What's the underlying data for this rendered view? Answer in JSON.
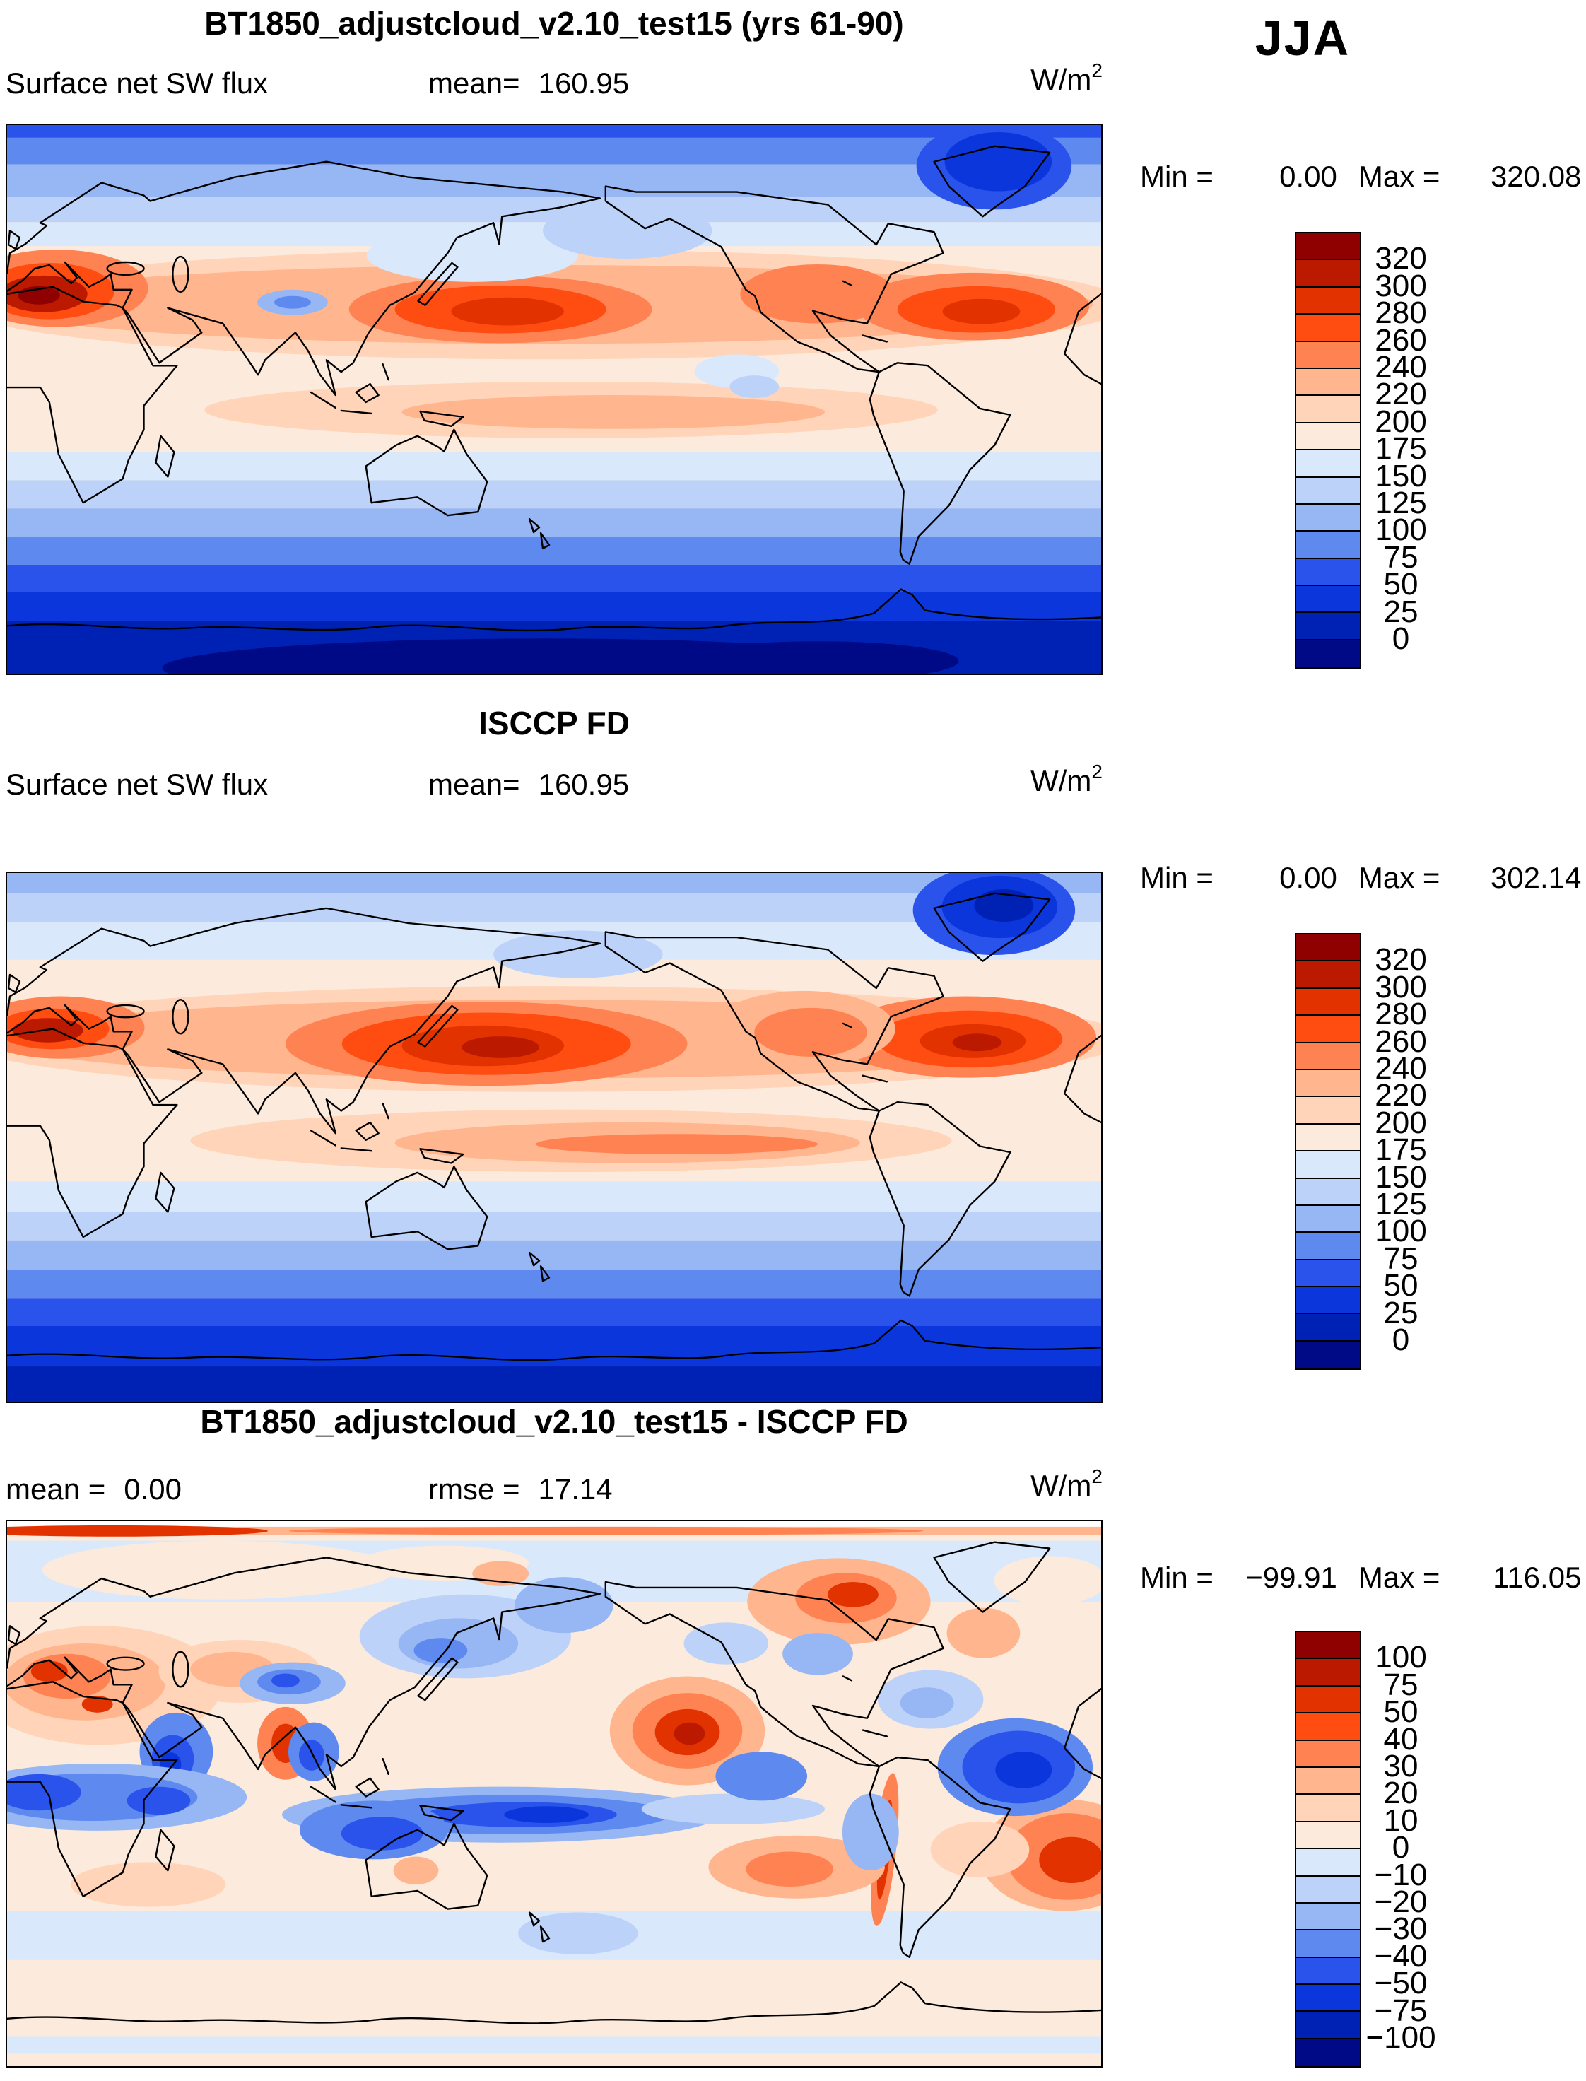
{
  "header": {
    "season": "JJA"
  },
  "panels": [
    {
      "title": "BT1850_adjustcloud_v2.10_test15 (yrs 61-90)",
      "var_label": "Surface net SW flux",
      "stats": [
        {
          "label": "mean=",
          "value": "160.95"
        }
      ],
      "units": {
        "base": "W/m",
        "exp": "2"
      },
      "minmax": {
        "min_label": "Min =",
        "min_value": "0.00",
        "max_label": "Max =",
        "max_value": "320.08"
      },
      "colorbar": {
        "labels": [
          "320",
          "300",
          "280",
          "260",
          "240",
          "220",
          "200",
          "175",
          "150",
          "125",
          "100",
          "75",
          "50",
          "25",
          "0"
        ],
        "colors": [
          "#8F0000",
          "#BB1A00",
          "#E23200",
          "#FF4D12",
          "#FF8352",
          "#FFB68F",
          "#FFD4B8",
          "#FCEBDC",
          "#D9E8FB",
          "#BDD2F8",
          "#96B6F4",
          "#5E8AF0",
          "#2A53EC",
          "#0B36DC",
          "#0022B4",
          "#000A86"
        ]
      }
    },
    {
      "title": "ISCCP FD",
      "var_label": "Surface net SW flux",
      "stats": [
        {
          "label": "mean=",
          "value": "160.95"
        }
      ],
      "units": {
        "base": "W/m",
        "exp": "2"
      },
      "minmax": {
        "min_label": "Min =",
        "min_value": "0.00",
        "max_label": "Max =",
        "max_value": "302.14"
      },
      "colorbar": {
        "labels": [
          "320",
          "300",
          "280",
          "260",
          "240",
          "220",
          "200",
          "175",
          "150",
          "125",
          "100",
          "75",
          "50",
          "25",
          "0"
        ],
        "colors": [
          "#8F0000",
          "#BB1A00",
          "#E23200",
          "#FF4D12",
          "#FF8352",
          "#FFB68F",
          "#FFD4B8",
          "#FCEBDC",
          "#D9E8FB",
          "#BDD2F8",
          "#96B6F4",
          "#5E8AF0",
          "#2A53EC",
          "#0B36DC",
          "#0022B4",
          "#000A86"
        ]
      }
    },
    {
      "title": "BT1850_adjustcloud_v2.10_test15 - ISCCP FD",
      "var_label": "",
      "stats": [
        {
          "label": "mean =",
          "value": "0.00"
        },
        {
          "label": "rmse =",
          "value": "17.14"
        }
      ],
      "units": {
        "base": "W/m",
        "exp": "2"
      },
      "minmax": {
        "min_label": "Min =",
        "min_value": "−99.91",
        "max_label": "Max =",
        "max_value": "116.05"
      },
      "colorbar": {
        "labels": [
          "100",
          "75",
          "50",
          "40",
          "30",
          "20",
          "10",
          "0",
          "−10",
          "−20",
          "−30",
          "−40",
          "−50",
          "−75",
          "−100"
        ],
        "colors": [
          "#8F0000",
          "#BB1A00",
          "#E23200",
          "#FF4D12",
          "#FF8352",
          "#FFB68F",
          "#FFD4B8",
          "#FCEBDC",
          "#D9E8FB",
          "#BDD2F8",
          "#96B6F4",
          "#5E8AF0",
          "#2A53EC",
          "#0B36DC",
          "#0022B4",
          "#000A86"
        ]
      }
    }
  ],
  "chart_data": [
    {
      "type": "heatmap",
      "subtype": "filled-contour global map",
      "title": "BT1850_adjustcloud_v2.10_test15 (yrs 61-90)",
      "variable": "Surface net SW flux",
      "season": "JJA",
      "units": "W/m^2",
      "mean": 160.95,
      "min": 0.0,
      "max": 320.08,
      "contour_levels": [
        0,
        25,
        50,
        75,
        100,
        125,
        150,
        175,
        200,
        220,
        240,
        260,
        280,
        300,
        320
      ],
      "palette_low_to_high": [
        "#000A86",
        "#0022B4",
        "#0B36DC",
        "#2A53EC",
        "#5E8AF0",
        "#96B6F4",
        "#BDD2F8",
        "#D9E8FB",
        "#FCEBDC",
        "#FFD4B8",
        "#FFB68F",
        "#FF8352",
        "#FF4D12",
        "#E23200",
        "#BB1A00",
        "#8F0000"
      ],
      "projection": "equirectangular 90N-90S, longitudes ~0E-360E",
      "legend_position": "right",
      "pattern_notes": "High values (260-320) across northern subtropics: Mediterranean/central Asia, central North Pacific, subtropical North Atlantic; pale 175-220 in tropics; values decrease poleward to 0 over Antarctica; dark blue low over Greenland."
    },
    {
      "type": "heatmap",
      "subtype": "filled-contour global map",
      "title": "ISCCP FD",
      "variable": "Surface net SW flux",
      "season": "JJA",
      "units": "W/m^2",
      "mean": 160.95,
      "min": 0.0,
      "max": 302.14,
      "contour_levels": [
        0,
        25,
        50,
        75,
        100,
        125,
        150,
        175,
        200,
        220,
        240,
        260,
        280,
        300,
        320
      ],
      "palette_low_to_high": [
        "#000A86",
        "#0022B4",
        "#0B36DC",
        "#2A53EC",
        "#5E8AF0",
        "#96B6F4",
        "#BDD2F8",
        "#D9E8FB",
        "#FCEBDC",
        "#FFD4B8",
        "#FFB68F",
        "#FF8352",
        "#FF4D12",
        "#E23200",
        "#BB1A00",
        "#8F0000"
      ],
      "projection": "equirectangular 90N-90S, longitudes ~0E-360E",
      "legend_position": "right",
      "pattern_notes": "Similar structure to model; broader 280-300 maxima over North Pacific and North Atlantic; secondary orange band in southern tropical Pacific; uniform deep blue over Southern Ocean and Antarctica."
    },
    {
      "type": "heatmap",
      "subtype": "filled-contour global difference map",
      "title": "BT1850_adjustcloud_v2.10_test15 - ISCCP FD",
      "variable": "Surface net SW flux difference",
      "season": "JJA",
      "units": "W/m^2",
      "mean": 0.0,
      "rmse": 17.14,
      "min": -99.91,
      "max": 116.05,
      "contour_levels": [
        -100,
        -75,
        -50,
        -40,
        -30,
        -20,
        -10,
        0,
        10,
        20,
        30,
        40,
        50,
        75,
        100
      ],
      "palette_low_to_high": [
        "#000A86",
        "#0022B4",
        "#0B36DC",
        "#2A53EC",
        "#5E8AF0",
        "#96B6F4",
        "#BDD2F8",
        "#D9E8FB",
        "#FCEBDC",
        "#FFD4B8",
        "#FFB68F",
        "#FF8352",
        "#FF4D12",
        "#E23200",
        "#BB1A00",
        "#8F0000"
      ],
      "projection": "equirectangular 90N-90S, longitudes ~0E-360E",
      "legend_position": "right",
      "pattern_notes": "Mostly within +/-10; positive (red) over Europe/central Asia, Arctic Canada, northeast subtropical Pacific (+50), Andes, South Atlantic; negative (blue) along equatorial Indo-Pacific band (-50), Arabian Sea, Caribbean/tropical Atlantic, southern Indian Ocean."
    }
  ]
}
